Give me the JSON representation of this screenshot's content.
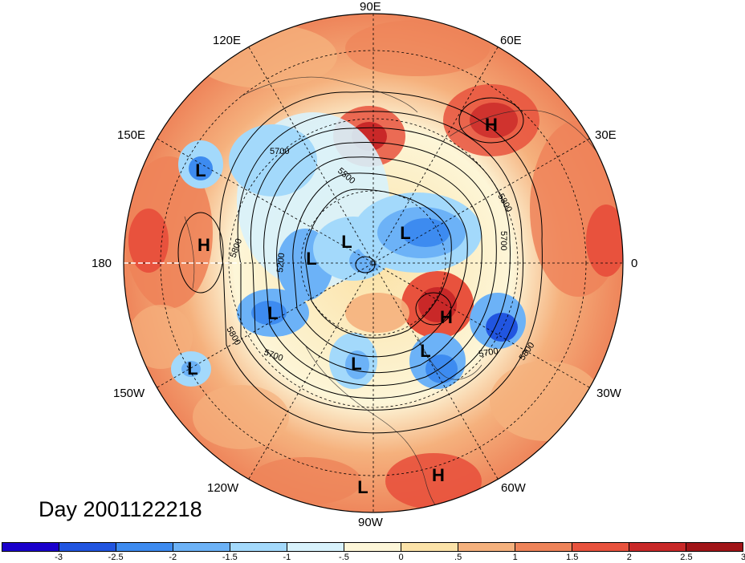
{
  "map": {
    "projection": "north-polar-stereographic",
    "longitude_labels": {
      "lon_90e": "90E",
      "lon_120e": "120E",
      "lon_60e": "60E",
      "lon_150e": "150E",
      "lon_30e": "30E",
      "lon_180": "180",
      "lon_0": "0",
      "lon_150w": "150W",
      "lon_30w": "30W",
      "lon_120w": "120W",
      "lon_60w": "60W",
      "lon_90w": "90W"
    },
    "pressure_centers": [
      {
        "type": "L",
        "near": "eastern Siberia / northern Pacific"
      },
      {
        "type": "H",
        "near": "Bering Sea"
      },
      {
        "type": "L",
        "near": "central Siberia"
      },
      {
        "type": "L",
        "near": "Arctic Ocean"
      },
      {
        "type": "L",
        "near": "Kara Sea"
      },
      {
        "type": "H",
        "near": "eastern Europe"
      },
      {
        "type": "L",
        "near": "Alaska"
      },
      {
        "type": "L",
        "near": "central Pacific"
      },
      {
        "type": "L",
        "near": "Hudson Bay"
      },
      {
        "type": "H",
        "near": "Greenland Sea"
      },
      {
        "type": "L",
        "near": "Labrador Sea"
      },
      {
        "type": "L",
        "near": "eastern Pacific"
      },
      {
        "type": "H",
        "near": "northern South America"
      }
    ],
    "contour_labels": {
      "c1": "5700",
      "c2": "5500",
      "c3": "5800",
      "c4": "5700",
      "c5": "5800",
      "c6": "5200",
      "c7": "5800",
      "c8": "5700",
      "c9": "5700",
      "c10": "5800"
    },
    "contour_unit_note": "geopotential height contours"
  },
  "title": {
    "day_label": "Day 2001122218"
  },
  "colorbar": {
    "colors": [
      "#1a00cc",
      "#2155e0",
      "#3d8bf0",
      "#6cb2f7",
      "#a3d9fb",
      "#d8f2fc",
      "#fdf6d8",
      "#fbe2a8",
      "#f5b17d",
      "#ee8359",
      "#e8523d",
      "#c92828",
      "#a11418"
    ],
    "ticks": [
      "-3",
      "-2.5",
      "-2",
      "-1.5",
      "-1",
      "-.5",
      "0",
      ".5",
      "1",
      "1.5",
      "2",
      "2.5",
      "3"
    ],
    "range": [
      -3.5,
      3.5
    ]
  }
}
